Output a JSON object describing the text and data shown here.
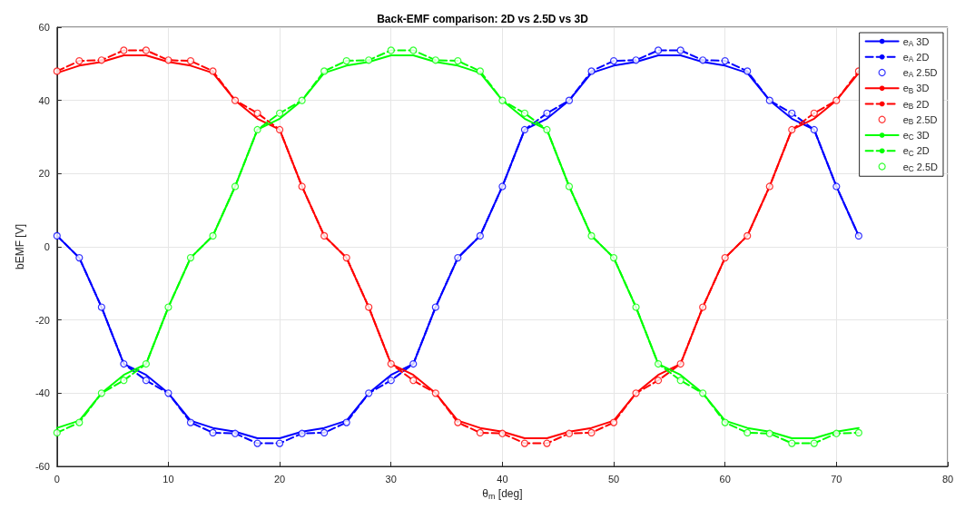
{
  "chart_data": {
    "type": "line",
    "title": "Back-EMF comparison: 2D vs 2.5D vs 3D",
    "xlabel": "θ$_{m}$ [deg]",
    "ylabel": "bEMF [V]",
    "x": [
      0,
      2,
      4,
      6,
      8,
      10,
      12,
      14,
      16,
      18,
      20,
      22,
      24,
      26,
      28,
      30,
      32,
      34,
      36,
      38,
      40,
      42,
      44,
      46,
      48,
      50,
      52,
      54,
      56,
      58,
      60,
      62,
      64,
      66,
      68,
      70,
      72
    ],
    "xlim": [
      0,
      80
    ],
    "xticks": [
      0,
      10,
      20,
      30,
      40,
      50,
      60,
      70,
      80
    ],
    "ylim": [
      -60,
      60
    ],
    "yticks": [
      -60,
      -40,
      -20,
      0,
      20,
      40,
      60
    ],
    "grid": true,
    "legend": "top right",
    "series": [
      {
        "name": "e$_{A}$ 3D",
        "type": "line",
        "line_style": "solid",
        "marker": "none",
        "color": "#0000ff",
        "values": [
          3,
          -3,
          -16.5,
          -32,
          -35,
          -40,
          -47.5,
          -49.5,
          -50.5,
          -52.3,
          -52.3,
          -50.5,
          -49.5,
          -47.5,
          -40,
          -35,
          -32,
          -16.5,
          -3,
          3,
          16.5,
          32,
          35,
          40,
          47.5,
          49.5,
          50.5,
          52.3,
          52.3,
          50.5,
          49.5,
          47.5,
          40,
          35,
          32,
          16.5,
          3
        ]
      },
      {
        "name": "e$_{A}$ 2D",
        "type": "line",
        "line_style": "dashed",
        "marker": "none",
        "color": "#0000ff",
        "values": [
          3,
          -3,
          -16.5,
          -32,
          -36.5,
          -40,
          -48,
          -50.8,
          -51,
          -53.7,
          -53.7,
          -51,
          -50.8,
          -48,
          -40,
          -36.5,
          -32,
          -16.5,
          -3,
          3,
          16.5,
          32,
          36.5,
          40,
          48,
          50.8,
          51,
          53.7,
          53.7,
          51,
          50.8,
          48,
          40,
          36.5,
          32,
          16.5,
          3
        ]
      },
      {
        "name": "e$_{A}$ 2.5D",
        "type": "scatter",
        "marker": "circle",
        "color": "#0000ff",
        "values": [
          3,
          -3,
          -16.5,
          -32,
          -36.5,
          -40,
          -48,
          -50.8,
          -51,
          -53.7,
          -53.7,
          -51,
          -50.8,
          -48,
          -40,
          -36.5,
          -32,
          -16.5,
          -3,
          3,
          16.5,
          32,
          36.5,
          40,
          48,
          50.8,
          51,
          53.7,
          53.7,
          51,
          50.8,
          48,
          40,
          36.5,
          32,
          16.5,
          3
        ]
      },
      {
        "name": "e$_{B}$ 3D",
        "type": "line",
        "line_style": "solid",
        "marker": "none",
        "color": "#ff0000",
        "values": [
          47.5,
          49.5,
          50.5,
          52.3,
          52.3,
          50.5,
          49.5,
          47.5,
          40,
          35,
          32,
          16.5,
          3,
          -3,
          -16.5,
          -32,
          -35,
          -40,
          -47.5,
          -49.5,
          -50.5,
          -52.3,
          -52.3,
          -50.5,
          -49.5,
          -47.5,
          -40,
          -35,
          -32,
          -16.5,
          -3,
          3,
          16.5,
          32,
          35,
          40,
          47.5
        ]
      },
      {
        "name": "e$_{B}$ 2D",
        "type": "line",
        "line_style": "dashed",
        "marker": "none",
        "color": "#ff0000",
        "values": [
          48,
          50.8,
          51,
          53.7,
          53.7,
          51,
          50.8,
          48,
          40,
          36.5,
          32,
          16.5,
          3,
          -3,
          -16.5,
          -32,
          -36.5,
          -40,
          -48,
          -50.8,
          -51,
          -53.7,
          -53.7,
          -51,
          -50.8,
          -48,
          -40,
          -36.5,
          -32,
          -16.5,
          -3,
          3,
          16.5,
          32,
          36.5,
          40,
          48
        ]
      },
      {
        "name": "e$_{B}$ 2.5D",
        "type": "scatter",
        "marker": "circle",
        "color": "#ff0000",
        "values": [
          48,
          50.8,
          51,
          53.7,
          53.7,
          51,
          50.8,
          48,
          40,
          36.5,
          32,
          16.5,
          3,
          -3,
          -16.5,
          -32,
          -36.5,
          -40,
          -48,
          -50.8,
          -51,
          -53.7,
          -53.7,
          -51,
          -50.8,
          -48,
          -40,
          -36.5,
          -32,
          -16.5,
          -3,
          3,
          16.5,
          32,
          36.5,
          40,
          48
        ]
      },
      {
        "name": "e$_{C}$ 3D",
        "type": "line",
        "line_style": "solid",
        "marker": "none",
        "color": "#00ff00",
        "values": [
          -49.5,
          -47.5,
          -40,
          -35,
          -32,
          -16.5,
          -3,
          3,
          16.5,
          32,
          35,
          40,
          47.5,
          49.5,
          50.5,
          52.3,
          52.3,
          50.5,
          49.5,
          47.5,
          40,
          35,
          32,
          16.5,
          3,
          -3,
          -16.5,
          -32,
          -35,
          -40,
          -47.5,
          -49.5,
          -50.5,
          -52.3,
          -52.3,
          -50.5,
          -49.5
        ]
      },
      {
        "name": "e$_{C}$ 2D",
        "type": "line",
        "line_style": "dashed",
        "marker": "none",
        "color": "#00ff00",
        "values": [
          -50.8,
          -48,
          -40,
          -36.5,
          -32,
          -16.5,
          -3,
          3,
          16.5,
          32,
          36.5,
          40,
          48,
          50.8,
          51,
          53.7,
          53.7,
          51,
          50.8,
          48,
          40,
          36.5,
          32,
          16.5,
          3,
          -3,
          -16.5,
          -32,
          -36.5,
          -40,
          -48,
          -50.8,
          -51,
          -53.7,
          -53.7,
          -51,
          -50.8
        ]
      },
      {
        "name": "e$_{C}$ 2.5D",
        "type": "scatter",
        "marker": "circle",
        "color": "#00ff00",
        "values": [
          -50.8,
          -48,
          -40,
          -36.5,
          -32,
          -16.5,
          -3,
          3,
          16.5,
          32,
          36.5,
          40,
          48,
          50.8,
          51,
          53.7,
          53.7,
          51,
          50.8,
          48,
          40,
          36.5,
          32,
          16.5,
          3,
          -3,
          -16.5,
          -32,
          -36.5,
          -40,
          -48,
          -50.8,
          -51,
          -53.7,
          -53.7,
          -51,
          -50.8
        ]
      }
    ]
  }
}
